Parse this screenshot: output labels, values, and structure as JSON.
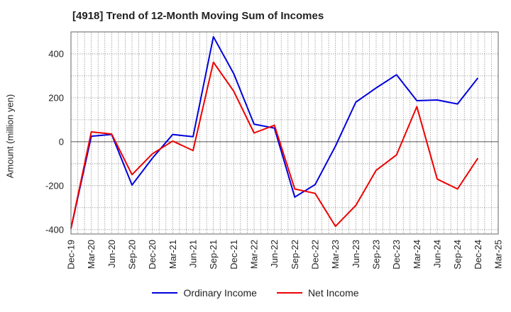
{
  "chart_data": {
    "type": "line",
    "title": "[4918]  Trend of 12-Month Moving Sum of Incomes",
    "xlabel": "",
    "ylabel": "Amount (million yen)",
    "x": [
      "Dec-19",
      "Mar-20",
      "Jun-20",
      "Sep-20",
      "Dec-20",
      "Mar-21",
      "Jun-21",
      "Sep-21",
      "Dec-21",
      "Mar-22",
      "Jun-22",
      "Sep-22",
      "Dec-22",
      "Mar-23",
      "Jun-23",
      "Sep-23",
      "Dec-23",
      "Mar-24",
      "Jun-24",
      "Sep-24",
      "Dec-24",
      "Mar-25"
    ],
    "ylim": [
      -420,
      500
    ],
    "yticks": [
      -400,
      -200,
      0,
      200,
      400
    ],
    "grid": true,
    "legend_position": "bottom",
    "series": [
      {
        "name": "Ordinary Income",
        "color": "#0000dd",
        "values": [
          -395,
          25,
          33,
          -197,
          -75,
          33,
          23,
          478,
          310,
          80,
          62,
          -252,
          -195,
          -20,
          180,
          245,
          305,
          187,
          190,
          172,
          290,
          null
        ]
      },
      {
        "name": "Net Income",
        "color": "#ee0000",
        "values": [
          -395,
          45,
          35,
          -150,
          -55,
          3,
          -40,
          362,
          230,
          40,
          75,
          -215,
          -235,
          -385,
          -290,
          -130,
          -60,
          160,
          -170,
          -215,
          -75,
          null
        ]
      }
    ]
  }
}
